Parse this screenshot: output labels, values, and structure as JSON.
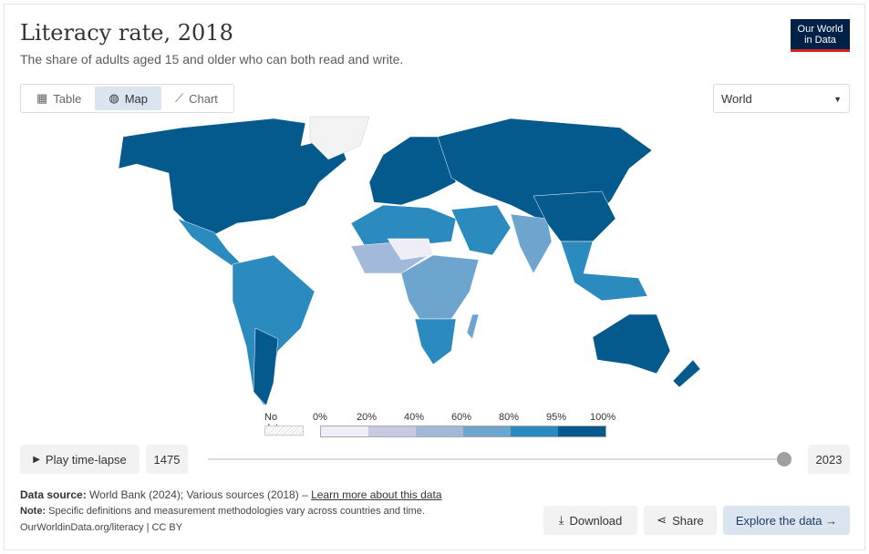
{
  "header": {
    "title": "Literacy rate, 2018",
    "subtitle": "The share of adults aged 15 and older who can both read and write.",
    "logo_line1": "Our World",
    "logo_line2": "in Data"
  },
  "tabs": [
    {
      "label": "Table",
      "icon": "table-icon"
    },
    {
      "label": "Map",
      "icon": "globe-icon",
      "active": true
    },
    {
      "label": "Chart",
      "icon": "line-chart-icon"
    }
  ],
  "region_select": {
    "value": "World"
  },
  "legend": {
    "no_data": "No data",
    "bins": [
      "0%",
      "20%",
      "40%",
      "60%",
      "80%",
      "95%",
      "100%"
    ],
    "colors": [
      "#efeef6",
      "#c9c9e1",
      "#a3b9d9",
      "#6ea5cf",
      "#2b8bbf",
      "#045a8d"
    ]
  },
  "timeline": {
    "play_label": "Play time-lapse",
    "start_year": "1475",
    "end_year": "2023",
    "position": 1.0
  },
  "footer": {
    "source_label": "Data source:",
    "source_text": "World Bank (2024); Various sources (2018) – ",
    "learn_more": "Learn more about this data",
    "note_label": "Note:",
    "note_text": "Specific definitions and measurement methodologies vary across countries and time.",
    "url": "OurWorldinData.org/literacy | CC BY"
  },
  "actions": {
    "download": "Download",
    "share": "Share",
    "explore": "Explore the data →"
  }
}
